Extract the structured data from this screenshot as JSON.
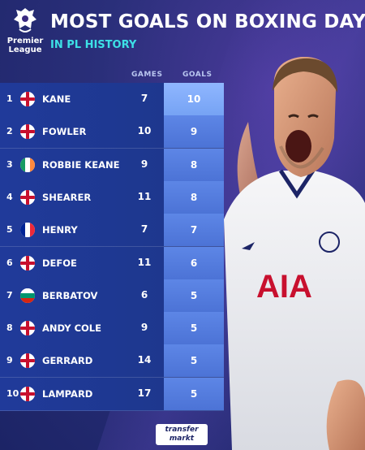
{
  "brand": {
    "line1": "Premier",
    "line2": "League"
  },
  "title": "MOST GOALS ON BOXING DAY",
  "subtitle": "IN PL HISTORY",
  "columns": {
    "games": "GAMES",
    "goals": "GOALS"
  },
  "rows": [
    {
      "rank": "1",
      "name": "KANE",
      "flag": "england",
      "games": "7",
      "goals": "10"
    },
    {
      "rank": "2",
      "name": "FOWLER",
      "flag": "england",
      "games": "10",
      "goals": "9"
    },
    {
      "rank": "3",
      "name": "ROBBIE KEANE",
      "flag": "ireland",
      "games": "9",
      "goals": "8"
    },
    {
      "rank": "4",
      "name": "SHEARER",
      "flag": "england",
      "games": "11",
      "goals": "8"
    },
    {
      "rank": "5",
      "name": "HENRY",
      "flag": "france",
      "games": "7",
      "goals": "7"
    },
    {
      "rank": "6",
      "name": "DEFOE",
      "flag": "england",
      "games": "11",
      "goals": "6"
    },
    {
      "rank": "7",
      "name": "BERBATOV",
      "flag": "bulgaria",
      "games": "6",
      "goals": "5"
    },
    {
      "rank": "8",
      "name": "ANDY COLE",
      "flag": "england",
      "games": "9",
      "goals": "5"
    },
    {
      "rank": "9",
      "name": "GERRARD",
      "flag": "england",
      "games": "14",
      "goals": "5"
    },
    {
      "rank": "10",
      "name": "LAMPARD",
      "flag": "england",
      "games": "17",
      "goals": "5"
    }
  ],
  "shirt_text": "AIA",
  "footer_logo": {
    "line1": "transfer",
    "line2": "markt"
  },
  "colors": {
    "accent": "#3de0e6",
    "background": "#1c2466",
    "row": "#203a9a",
    "goals_cell": "#5d86e6"
  }
}
